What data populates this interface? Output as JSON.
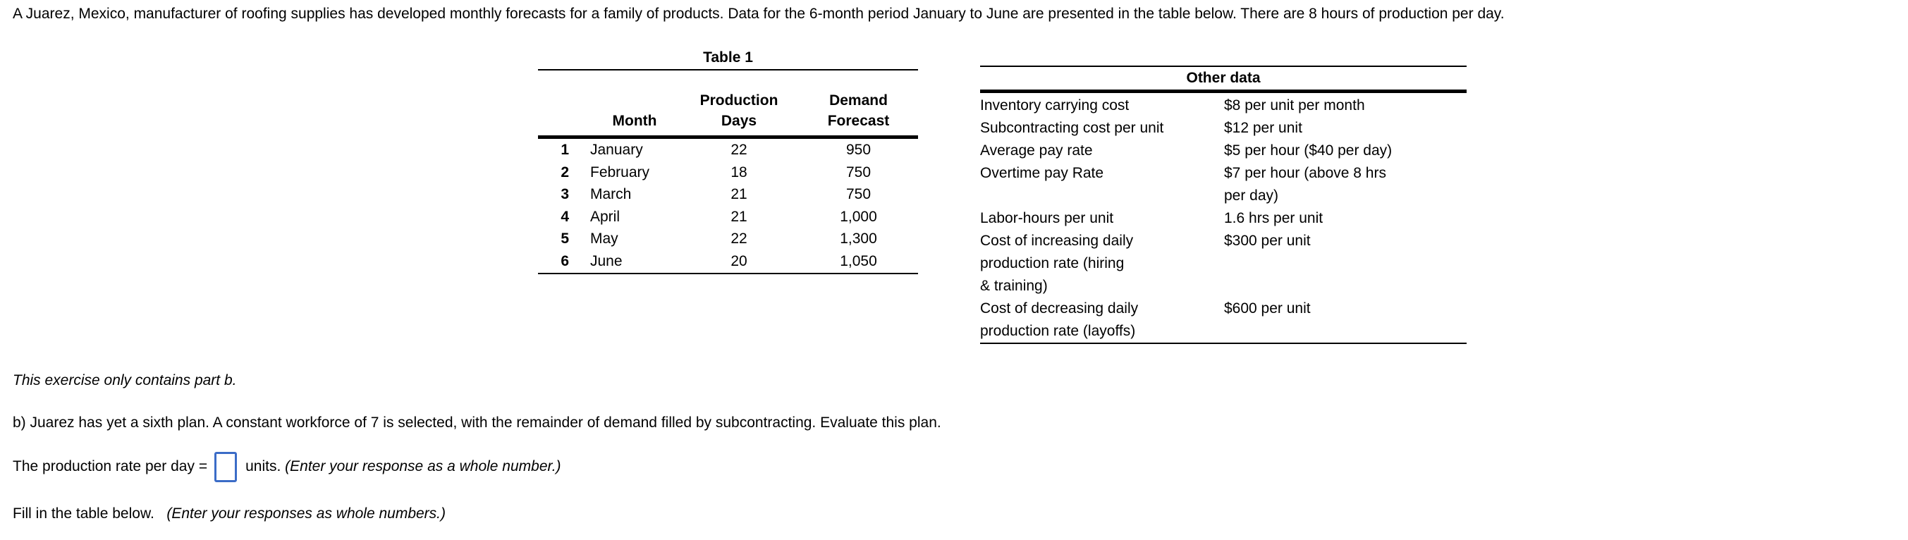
{
  "intro": "A Juarez, Mexico, manufacturer of roofing supplies has developed monthly forecasts for a family of products. Data for the 6-month period January to June are presented in the table below. There are 8 hours of production per day.",
  "table1": {
    "title": "Table 1",
    "columns": {
      "month": "Month",
      "production_days": "Production\nDays",
      "demand_forecast": "Demand\nForecast"
    },
    "rows": [
      {
        "num": "1",
        "month": "January",
        "days": "22",
        "forecast": "950"
      },
      {
        "num": "2",
        "month": "February",
        "days": "18",
        "forecast": "750"
      },
      {
        "num": "3",
        "month": "March",
        "days": "21",
        "forecast": "750"
      },
      {
        "num": "4",
        "month": "April",
        "days": "21",
        "forecast": "1,000"
      },
      {
        "num": "5",
        "month": "May",
        "days": "22",
        "forecast": "1,300"
      },
      {
        "num": "6",
        "month": "June",
        "days": "20",
        "forecast": "1,050"
      }
    ]
  },
  "other_data": {
    "title": "Other data",
    "rows": [
      {
        "label": "Inventory carrying cost",
        "value": "$8 per unit per month"
      },
      {
        "label": "Subcontracting cost per unit",
        "value": "$12 per unit"
      },
      {
        "label": "Average pay rate",
        "value": "$5 per hour ($40 per day)"
      },
      {
        "label": "Overtime pay Rate",
        "value": "$7 per hour (above 8 hrs\nper day)"
      },
      {
        "label": "Labor-hours per unit",
        "value": "1.6 hrs per unit"
      },
      {
        "label": "Cost of increasing daily\nproduction rate (hiring\n& training)",
        "value": "$300 per unit"
      },
      {
        "label": "Cost of decreasing daily\nproduction rate (layoffs)",
        "value": "$600 per unit"
      }
    ]
  },
  "exercise_note": "This exercise only contains part b.",
  "part_b": "b) Juarez has yet a sixth plan. A constant workforce of 7 is selected, with the remainder of demand filled by subcontracting. Evaluate this plan.",
  "production_rate": {
    "prefix": "The production rate per day =",
    "input_value": "",
    "suffix": "units.",
    "instruction": "(Enter your response as a whole number.)"
  },
  "fill_table": {
    "prefix": "Fill in the table below.",
    "instruction": "(Enter your responses as whole numbers.)"
  },
  "colors": {
    "input_border": "#3B6CC7",
    "text": "#000000"
  }
}
